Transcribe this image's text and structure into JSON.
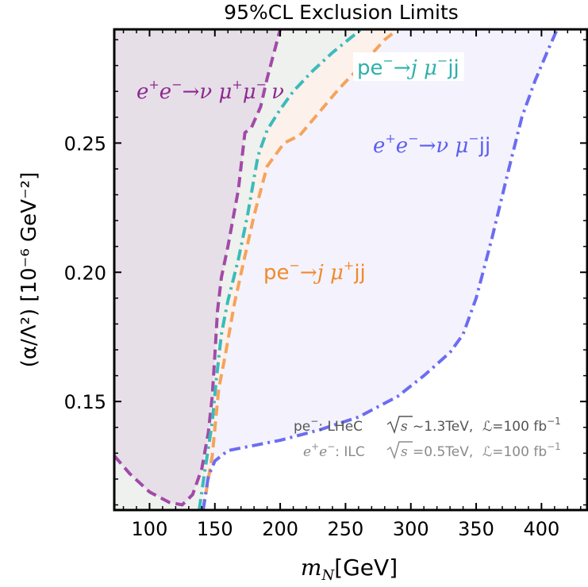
{
  "chart_data": {
    "type": "area",
    "title": "95%CL Exclusion Limits",
    "xlabel": {
      "prefix": "m",
      "sub": "N",
      "suffix": "[GeV]"
    },
    "ylabel": {
      "text": "(α/Λ²) [10⁻⁶ GeV⁻²]"
    },
    "xlim": [
      73,
      435
    ],
    "ylim": [
      0.108,
      0.294
    ],
    "xticks": [
      100,
      150,
      200,
      250,
      300,
      350,
      400
    ],
    "yticks": [
      0.15,
      0.2,
      0.25
    ],
    "xtick_labels": [
      "100",
      "150",
      "200",
      "250",
      "300",
      "350",
      "400"
    ],
    "ytick_labels": [
      "0.15",
      "0.20",
      "0.25"
    ],
    "grid": false,
    "series": [
      {
        "name": "e⁺e⁻→ν μ⁺μ⁻ν",
        "color": "#a24aa8",
        "fill": "#e6dfe8",
        "dash": "dashed",
        "points": [
          [
            73,
            0.129
          ],
          [
            85,
            0.122
          ],
          [
            100,
            0.115
          ],
          [
            115,
            0.111
          ],
          [
            125,
            0.11
          ],
          [
            133,
            0.114
          ],
          [
            140,
            0.124
          ],
          [
            145,
            0.138
          ],
          [
            148,
            0.152
          ],
          [
            150,
            0.168
          ],
          [
            152,
            0.185
          ],
          [
            155,
            0.198
          ],
          [
            160,
            0.21
          ],
          [
            168,
            0.232
          ],
          [
            173,
            0.254
          ],
          [
            178,
            0.256
          ],
          [
            185,
            0.264
          ],
          [
            190,
            0.275
          ],
          [
            200,
            0.294
          ]
        ]
      },
      {
        "name": "pe⁻→j μ⁻jj",
        "color": "#3bbbbb",
        "fill": "#eef1ed",
        "dash": "dashdot",
        "points": [
          [
            138,
            0.108
          ],
          [
            142,
            0.122
          ],
          [
            148,
            0.142
          ],
          [
            151,
            0.158
          ],
          [
            155,
            0.176
          ],
          [
            160,
            0.189
          ],
          [
            168,
            0.205
          ],
          [
            175,
            0.222
          ],
          [
            183,
            0.245
          ],
          [
            190,
            0.255
          ],
          [
            200,
            0.263
          ],
          [
            210,
            0.27
          ],
          [
            225,
            0.278
          ],
          [
            240,
            0.285
          ],
          [
            262,
            0.294
          ]
        ]
      },
      {
        "name": "pe⁻→j μ⁺jj",
        "color": "#f5a35c",
        "fill": "#fdf1ec",
        "dash": "dashed",
        "points": [
          [
            141,
            0.108
          ],
          [
            148,
            0.129
          ],
          [
            153,
            0.155
          ],
          [
            158,
            0.168
          ],
          [
            165,
            0.188
          ],
          [
            172,
            0.204
          ],
          [
            180,
            0.222
          ],
          [
            190,
            0.241
          ],
          [
            203,
            0.25
          ],
          [
            215,
            0.253
          ],
          [
            230,
            0.262
          ],
          [
            245,
            0.271
          ],
          [
            262,
            0.28
          ],
          [
            280,
            0.29
          ],
          [
            290,
            0.294
          ]
        ]
      },
      {
        "name": "e⁺e⁻→ν μ⁻jj",
        "color": "#6c6df0",
        "fill": "#f4f3fd",
        "dash": "dashdot",
        "points": [
          [
            141,
            0.108
          ],
          [
            145,
            0.121
          ],
          [
            150,
            0.127
          ],
          [
            160,
            0.131
          ],
          [
            180,
            0.133
          ],
          [
            200,
            0.135
          ],
          [
            230,
            0.139
          ],
          [
            260,
            0.144
          ],
          [
            290,
            0.152
          ],
          [
            310,
            0.16
          ],
          [
            330,
            0.169
          ],
          [
            340,
            0.176
          ],
          [
            350,
            0.19
          ],
          [
            362,
            0.213
          ],
          [
            375,
            0.24
          ],
          [
            385,
            0.26
          ],
          [
            395,
            0.274
          ],
          [
            405,
            0.286
          ],
          [
            412,
            0.294
          ]
        ]
      }
    ],
    "annotations": {
      "label_ee_mumu": {
        "text_pre": "e",
        "sup1": "+",
        "text_mid": "e",
        "sup2": "−",
        "text_post": "→ν μ",
        "sup3": "+",
        "text_post2": "μ",
        "sup4": "−",
        "text_end": "ν",
        "color": "#8d2a8f"
      },
      "label_pe_mum": {
        "text": "pe",
        "sup1": "−",
        "mid": "→j μ",
        "sup2": "−",
        "end": "jj",
        "color": "#2fb0ab"
      },
      "label_ee_mujj": {
        "text_pre": "e",
        "sup1": "+",
        "text_mid": "e",
        "sup2": "−",
        "text_post": "→ν μ",
        "sup3": "−",
        "text_end": "jj",
        "color": "#5b5ef0"
      },
      "label_pe_mup": {
        "text": "pe",
        "sup1": "−",
        "mid": "→j μ",
        "sup2": "+",
        "end": "jj",
        "color": "#f08a2c"
      },
      "lhec_line": {
        "a": "pe",
        "a_sup": "−",
        "b": ": LHeC",
        "c": "s",
        "d": "~1.3TeV,",
        "e": "ℒ=100 fb",
        "e_sup": "−1"
      },
      "ilc_line": {
        "a": "e",
        "a_sup": "+",
        "a2": "e",
        "a2_sup": "−",
        "b": ": ILC",
        "c": "s",
        "d": "=0.5TeV,",
        "e": "ℒ=100 fb",
        "e_sup": "−1"
      }
    }
  }
}
